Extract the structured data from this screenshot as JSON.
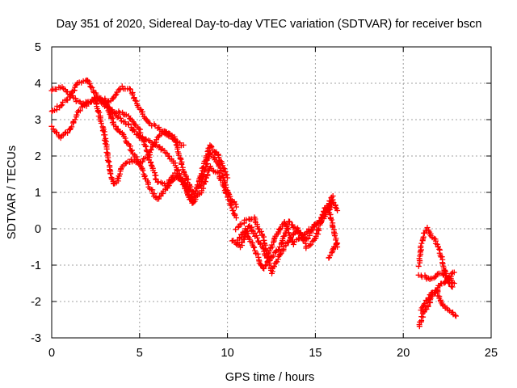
{
  "chart_data": {
    "type": "scatter",
    "title": "Day 351 of 2020, Sidereal Day-to-day VTEC variation (SDTVAR) for receiver bscn",
    "xlabel": "GPS time / hours",
    "ylabel": "SDTVAR / TECUs",
    "xlim": [
      0,
      25
    ],
    "ylim": [
      -3,
      5
    ],
    "xticks": [
      0,
      5,
      10,
      15,
      20,
      25
    ],
    "yticks": [
      -3,
      -2,
      -1,
      0,
      1,
      2,
      3,
      4,
      5
    ],
    "xtick_labels": [
      "0",
      "5",
      "10",
      "15",
      "20",
      "25"
    ],
    "ytick_labels": [
      "-3",
      "-2",
      "-1",
      "0",
      "1",
      "2",
      "3",
      "4",
      "5"
    ],
    "grid": true,
    "marker": "+",
    "color": "#ff0000",
    "series": [
      {
        "x": [
          0.0,
          0.5,
          1.0,
          1.5,
          2.0,
          2.5,
          3.0,
          3.5,
          4.0,
          4.5,
          5.0,
          5.5,
          6.0,
          6.5,
          7.0,
          7.5,
          8.0,
          8.5,
          9.0,
          9.5,
          10.0
        ],
        "y": [
          3.8,
          3.9,
          3.7,
          3.5,
          3.4,
          3.6,
          3.5,
          3.2,
          3.0,
          2.8,
          2.5,
          2.4,
          2.3,
          2.1,
          1.8,
          1.2,
          0.7,
          1.5,
          2.3,
          2.0,
          1.4
        ]
      },
      {
        "x": [
          0.0,
          0.5,
          1.0,
          1.5,
          2.0,
          2.5,
          3.0,
          3.5,
          4.0,
          4.5,
          5.0,
          5.5,
          6.0,
          6.5,
          7.0,
          7.5,
          8.0,
          8.5,
          9.0,
          9.5,
          10.0,
          10.5
        ],
        "y": [
          3.2,
          3.4,
          3.6,
          4.0,
          4.1,
          3.7,
          3.4,
          3.6,
          3.9,
          3.8,
          3.3,
          2.9,
          2.8,
          2.6,
          2.5,
          1.6,
          1.0,
          1.2,
          2.1,
          1.8,
          1.0,
          0.6
        ]
      },
      {
        "x": [
          0.0,
          0.5,
          1.0,
          1.5,
          2.0,
          2.5,
          3.0,
          3.5,
          4.0,
          4.5,
          5.0,
          5.5,
          6.0,
          6.5,
          7.0,
          7.5,
          8.0,
          8.5,
          9.0,
          9.5,
          10.0,
          10.5
        ],
        "y": [
          2.8,
          2.5,
          2.7,
          3.2,
          3.5,
          3.5,
          3.6,
          2.9,
          2.6,
          2.2,
          1.8,
          1.2,
          0.8,
          1.1,
          1.4,
          1.3,
          0.7,
          1.0,
          1.7,
          1.5,
          0.9,
          0.3
        ]
      },
      {
        "x": [
          2.5,
          3.0,
          3.25,
          3.5,
          3.75,
          4.0,
          4.5,
          5.0,
          5.5,
          6.0,
          6.5,
          7.0,
          7.5
        ],
        "y": [
          3.5,
          2.6,
          1.8,
          1.2,
          1.3,
          1.7,
          1.9,
          1.8,
          2.0,
          2.5,
          2.7,
          2.4,
          2.3
        ]
      },
      {
        "x": [
          3.0,
          3.5,
          4.0,
          4.5,
          5.0,
          5.5,
          6.0,
          6.5,
          7.0,
          7.5,
          8.0
        ],
        "y": [
          3.4,
          3.2,
          3.2,
          3.0,
          2.7,
          2.0,
          1.3,
          1.2,
          1.5,
          1.3,
          0.9
        ]
      },
      {
        "x": [
          10.5,
          11.0,
          11.5,
          12.0,
          12.5,
          13.0,
          13.5,
          14.0,
          14.5,
          15.0,
          15.5,
          16.0,
          16.25
        ],
        "y": [
          -0.4,
          0.0,
          -0.5,
          -1.1,
          -0.8,
          -0.5,
          0.2,
          -0.1,
          -0.3,
          0.1,
          0.3,
          0.8,
          0.5
        ]
      },
      {
        "x": [
          10.5,
          11.0,
          11.5,
          12.0,
          12.5,
          13.0,
          13.5,
          14.0,
          14.5,
          15.0,
          15.5,
          16.0
        ],
        "y": [
          0.0,
          0.2,
          0.3,
          -0.2,
          -1.2,
          -0.7,
          -0.3,
          0.0,
          -0.5,
          -0.3,
          0.5,
          0.9
        ]
      },
      {
        "x": [
          10.25,
          10.75,
          11.25,
          11.75,
          12.25,
          12.75,
          13.25,
          13.75,
          14.25,
          14.75,
          15.25,
          15.75,
          16.25
        ],
        "y": [
          -0.3,
          -0.5,
          0.1,
          -0.3,
          -0.8,
          -0.2,
          0.2,
          -0.4,
          -0.2,
          0.0,
          0.2,
          0.6,
          -0.5
        ]
      },
      {
        "x": [
          15.75,
          16.0,
          16.25
        ],
        "y": [
          -0.8,
          -0.6,
          -0.4
        ]
      },
      {
        "x": [
          20.9,
          21.0,
          21.2,
          21.4,
          21.6,
          21.8,
          22.0,
          22.2,
          22.4,
          22.6,
          22.8
        ],
        "y": [
          -1.0,
          -0.5,
          -0.1,
          0.0,
          -0.2,
          -0.3,
          -0.5,
          -0.8,
          -1.2,
          -1.5,
          -1.6
        ]
      },
      {
        "x": [
          20.9,
          21.1,
          21.3,
          21.5,
          21.7,
          21.9,
          22.1,
          22.3,
          22.5,
          22.7,
          22.9
        ],
        "y": [
          -2.7,
          -2.4,
          -2.2,
          -2.0,
          -1.8,
          -1.7,
          -1.5,
          -1.5,
          -1.4,
          -1.3,
          -1.2
        ]
      },
      {
        "x": [
          20.9,
          21.2,
          21.5,
          21.8,
          22.1,
          22.4,
          22.7,
          22.9
        ],
        "y": [
          -1.3,
          -1.3,
          -1.4,
          -1.3,
          -1.2,
          -1.3,
          -1.4,
          -1.5
        ]
      },
      {
        "x": [
          21.0,
          21.3,
          21.6,
          21.9,
          22.2,
          22.5,
          22.8,
          23.0
        ],
        "y": [
          -2.2,
          -2.0,
          -1.8,
          -1.7,
          -2.1,
          -2.2,
          -2.3,
          -2.4
        ]
      }
    ]
  }
}
